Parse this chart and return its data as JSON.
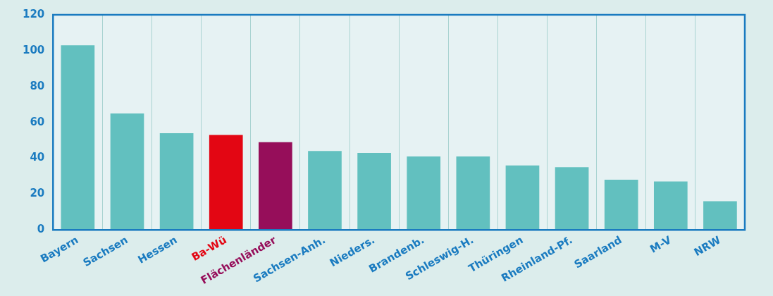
{
  "chart_data": {
    "type": "bar",
    "categories": [
      "Bayern",
      "Sachsen",
      "Hessen",
      "Ba-Wü",
      "Flächenländer",
      "Sachsen-Anh.",
      "Nieders.",
      "Brandenb.",
      "Schleswig-H.",
      "Thüringen",
      "Rheinland-Pf.",
      "Saarland",
      "M-V",
      "NRW"
    ],
    "values": [
      103,
      65,
      54,
      53,
      49,
      44,
      43,
      41,
      41,
      36,
      35,
      28,
      27,
      16
    ],
    "colors": [
      "#62c0bf",
      "#62c0bf",
      "#62c0bf",
      "#e30613",
      "#960e5a",
      "#62c0bf",
      "#62c0bf",
      "#62c0bf",
      "#62c0bf",
      "#62c0bf",
      "#62c0bf",
      "#62c0bf",
      "#62c0bf",
      "#62c0bf"
    ],
    "ylim": [
      0,
      120
    ],
    "yticks": [
      0,
      20,
      40,
      60,
      80,
      100,
      120
    ],
    "grid": "x"
  }
}
